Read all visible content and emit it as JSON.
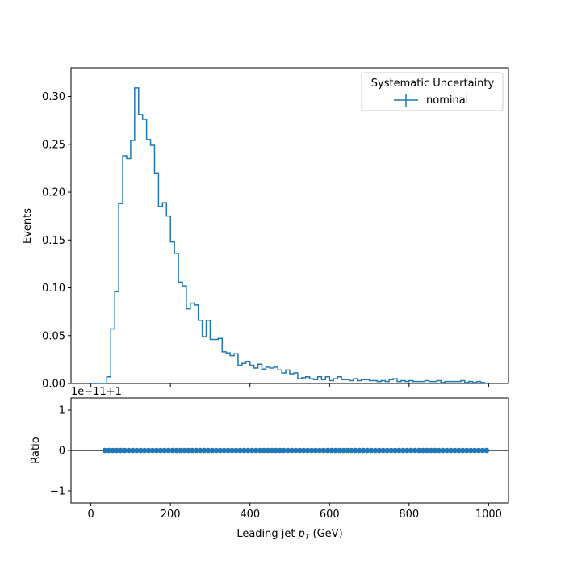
{
  "chart_data": [
    {
      "type": "line",
      "drawstyle": "steps-post",
      "xlabel": "Leading jet  p_T (GeV)",
      "ylabel": "Events",
      "xlim": [
        -50,
        1050
      ],
      "ylim": [
        0,
        0.33
      ],
      "yticks": [
        0.0,
        0.05,
        0.1,
        0.15,
        0.2,
        0.25,
        0.3
      ],
      "ytick_labels": [
        "0.00",
        "0.05",
        "0.10",
        "0.15",
        "0.20",
        "0.25",
        "0.30"
      ],
      "xtick_labels_visible": false,
      "legend": {
        "title": "Systematic Uncertainty",
        "placement": "top-right"
      },
      "series": [
        {
          "name": "nominal",
          "color": "#1f77b4",
          "bin_edges": [
            0,
            10,
            20,
            30,
            40,
            50,
            60,
            70,
            80,
            90,
            100,
            110,
            120,
            130,
            140,
            150,
            160,
            170,
            180,
            190,
            200,
            210,
            220,
            230,
            240,
            250,
            260,
            270,
            280,
            290,
            300,
            310,
            320,
            330,
            340,
            350,
            360,
            370,
            380,
            390,
            400,
            410,
            420,
            430,
            440,
            450,
            460,
            470,
            480,
            490,
            500,
            510,
            520,
            530,
            540,
            550,
            560,
            570,
            580,
            590,
            600,
            610,
            620,
            630,
            640,
            650,
            660,
            670,
            680,
            690,
            700,
            710,
            720,
            730,
            740,
            750,
            760,
            770,
            780,
            790,
            800,
            810,
            820,
            830,
            840,
            850,
            860,
            870,
            880,
            890,
            900,
            910,
            920,
            930,
            940,
            950,
            960,
            970,
            980,
            990,
            1000
          ],
          "values": [
            0.0,
            0.0,
            0.0,
            0.0,
            0.007,
            0.057,
            0.096,
            0.188,
            0.238,
            0.235,
            0.254,
            0.309,
            0.281,
            0.276,
            0.255,
            0.249,
            0.22,
            0.185,
            0.189,
            0.175,
            0.148,
            0.136,
            0.106,
            0.102,
            0.078,
            0.084,
            0.082,
            0.066,
            0.049,
            0.066,
            0.046,
            0.046,
            0.047,
            0.033,
            0.032,
            0.029,
            0.031,
            0.019,
            0.021,
            0.023,
            0.019,
            0.016,
            0.02,
            0.015,
            0.017,
            0.016,
            0.017,
            0.014,
            0.011,
            0.014,
            0.01,
            0.011,
            0.005,
            0.006,
            0.007,
            0.005,
            0.004,
            0.007,
            0.004,
            0.007,
            0.003,
            0.005,
            0.007,
            0.004,
            0.004,
            0.003,
            0.005,
            0.003,
            0.004,
            0.004,
            0.003,
            0.003,
            0.002,
            0.003,
            0.002,
            0.004,
            0.005,
            0.002,
            0.003,
            0.002,
            0.003,
            0.002,
            0.002,
            0.002,
            0.003,
            0.002,
            0.002,
            0.003,
            0.001,
            0.002,
            0.002,
            0.002,
            0.002,
            0.003,
            0.001,
            0.002,
            0.001,
            0.002,
            0.001,
            0.0
          ]
        }
      ]
    },
    {
      "type": "scatter",
      "xlabel": "Leading jet  p_T (GeV)",
      "ylabel": "Ratio",
      "offset_text": "1e−11+1",
      "xlim": [
        -50,
        1050
      ],
      "ylim": [
        -1.3,
        1.3
      ],
      "yticks": [
        -1,
        0,
        1
      ],
      "ytick_labels": [
        "−1",
        "0",
        "1"
      ],
      "xticks": [
        0,
        200,
        400,
        600,
        800,
        1000
      ],
      "xtick_labels": [
        "0",
        "200",
        "400",
        "600",
        "800",
        "1000"
      ],
      "reference_line": 0,
      "series": [
        {
          "name": "nominal",
          "color": "#1f77b4",
          "x": [
            35,
            45,
            55,
            65,
            75,
            85,
            95,
            105,
            115,
            125,
            135,
            145,
            155,
            165,
            175,
            185,
            195,
            205,
            215,
            225,
            235,
            245,
            255,
            265,
            275,
            285,
            295,
            305,
            315,
            325,
            335,
            345,
            355,
            365,
            375,
            385,
            395,
            405,
            415,
            425,
            435,
            445,
            455,
            465,
            475,
            485,
            495,
            505,
            515,
            525,
            535,
            545,
            555,
            565,
            575,
            585,
            595,
            605,
            615,
            625,
            635,
            645,
            655,
            665,
            675,
            685,
            695,
            705,
            715,
            725,
            735,
            745,
            755,
            765,
            775,
            785,
            795,
            805,
            815,
            825,
            835,
            845,
            855,
            865,
            875,
            885,
            895,
            905,
            915,
            925,
            935,
            945,
            955,
            965,
            975,
            985,
            995
          ],
          "y_value": 0
        }
      ]
    }
  ]
}
